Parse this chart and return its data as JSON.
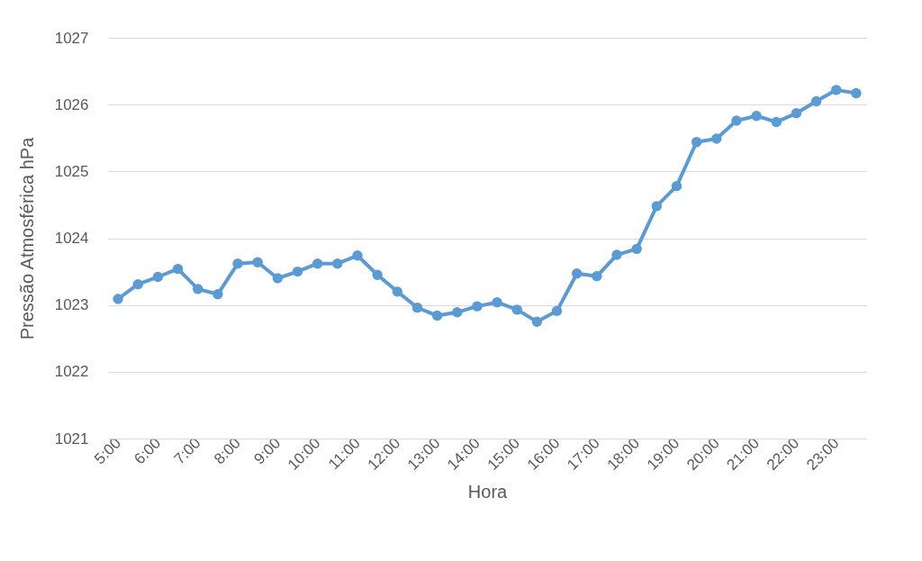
{
  "chart_data": {
    "type": "line",
    "xlabel": "Hora",
    "ylabel": "Pressão Atmosférica hPa",
    "categories": [
      "5:00",
      null,
      "6:00",
      null,
      "7:00",
      null,
      "8:00",
      null,
      "9:00",
      null,
      "10:00",
      null,
      "11:00",
      null,
      "12:00",
      null,
      "13:00",
      null,
      "14:00",
      null,
      "15:00",
      null,
      "16:00",
      null,
      "17:00",
      null,
      "18:00",
      null,
      "19:00",
      null,
      "20:00",
      null,
      "21:00",
      null,
      "22:00",
      null,
      "23:00",
      null
    ],
    "series": [
      {
        "color": "#5b9bd5",
        "values": [
          1023.09,
          1023.31,
          1023.42,
          1023.54,
          1023.24,
          1023.16,
          1023.62,
          1023.64,
          1023.4,
          1023.5,
          1023.62,
          1023.62,
          1023.74,
          1023.45,
          1023.2,
          1022.96,
          1022.84,
          1022.89,
          1022.98,
          1023.04,
          1022.93,
          1022.75,
          1022.91,
          1023.47,
          1023.43,
          1023.75,
          1023.84,
          1024.48,
          1024.78,
          1025.44,
          1025.49,
          1025.76,
          1025.83,
          1025.74,
          1025.87,
          1026.05,
          1026.22,
          1026.17
        ]
      }
    ],
    "ylim": [
      1021,
      1027
    ],
    "yticks": [
      1021,
      1022,
      1023,
      1024,
      1025,
      1026,
      1027
    ],
    "grid": "y",
    "marker": "circle",
    "line_style": "solid",
    "legend": false
  }
}
